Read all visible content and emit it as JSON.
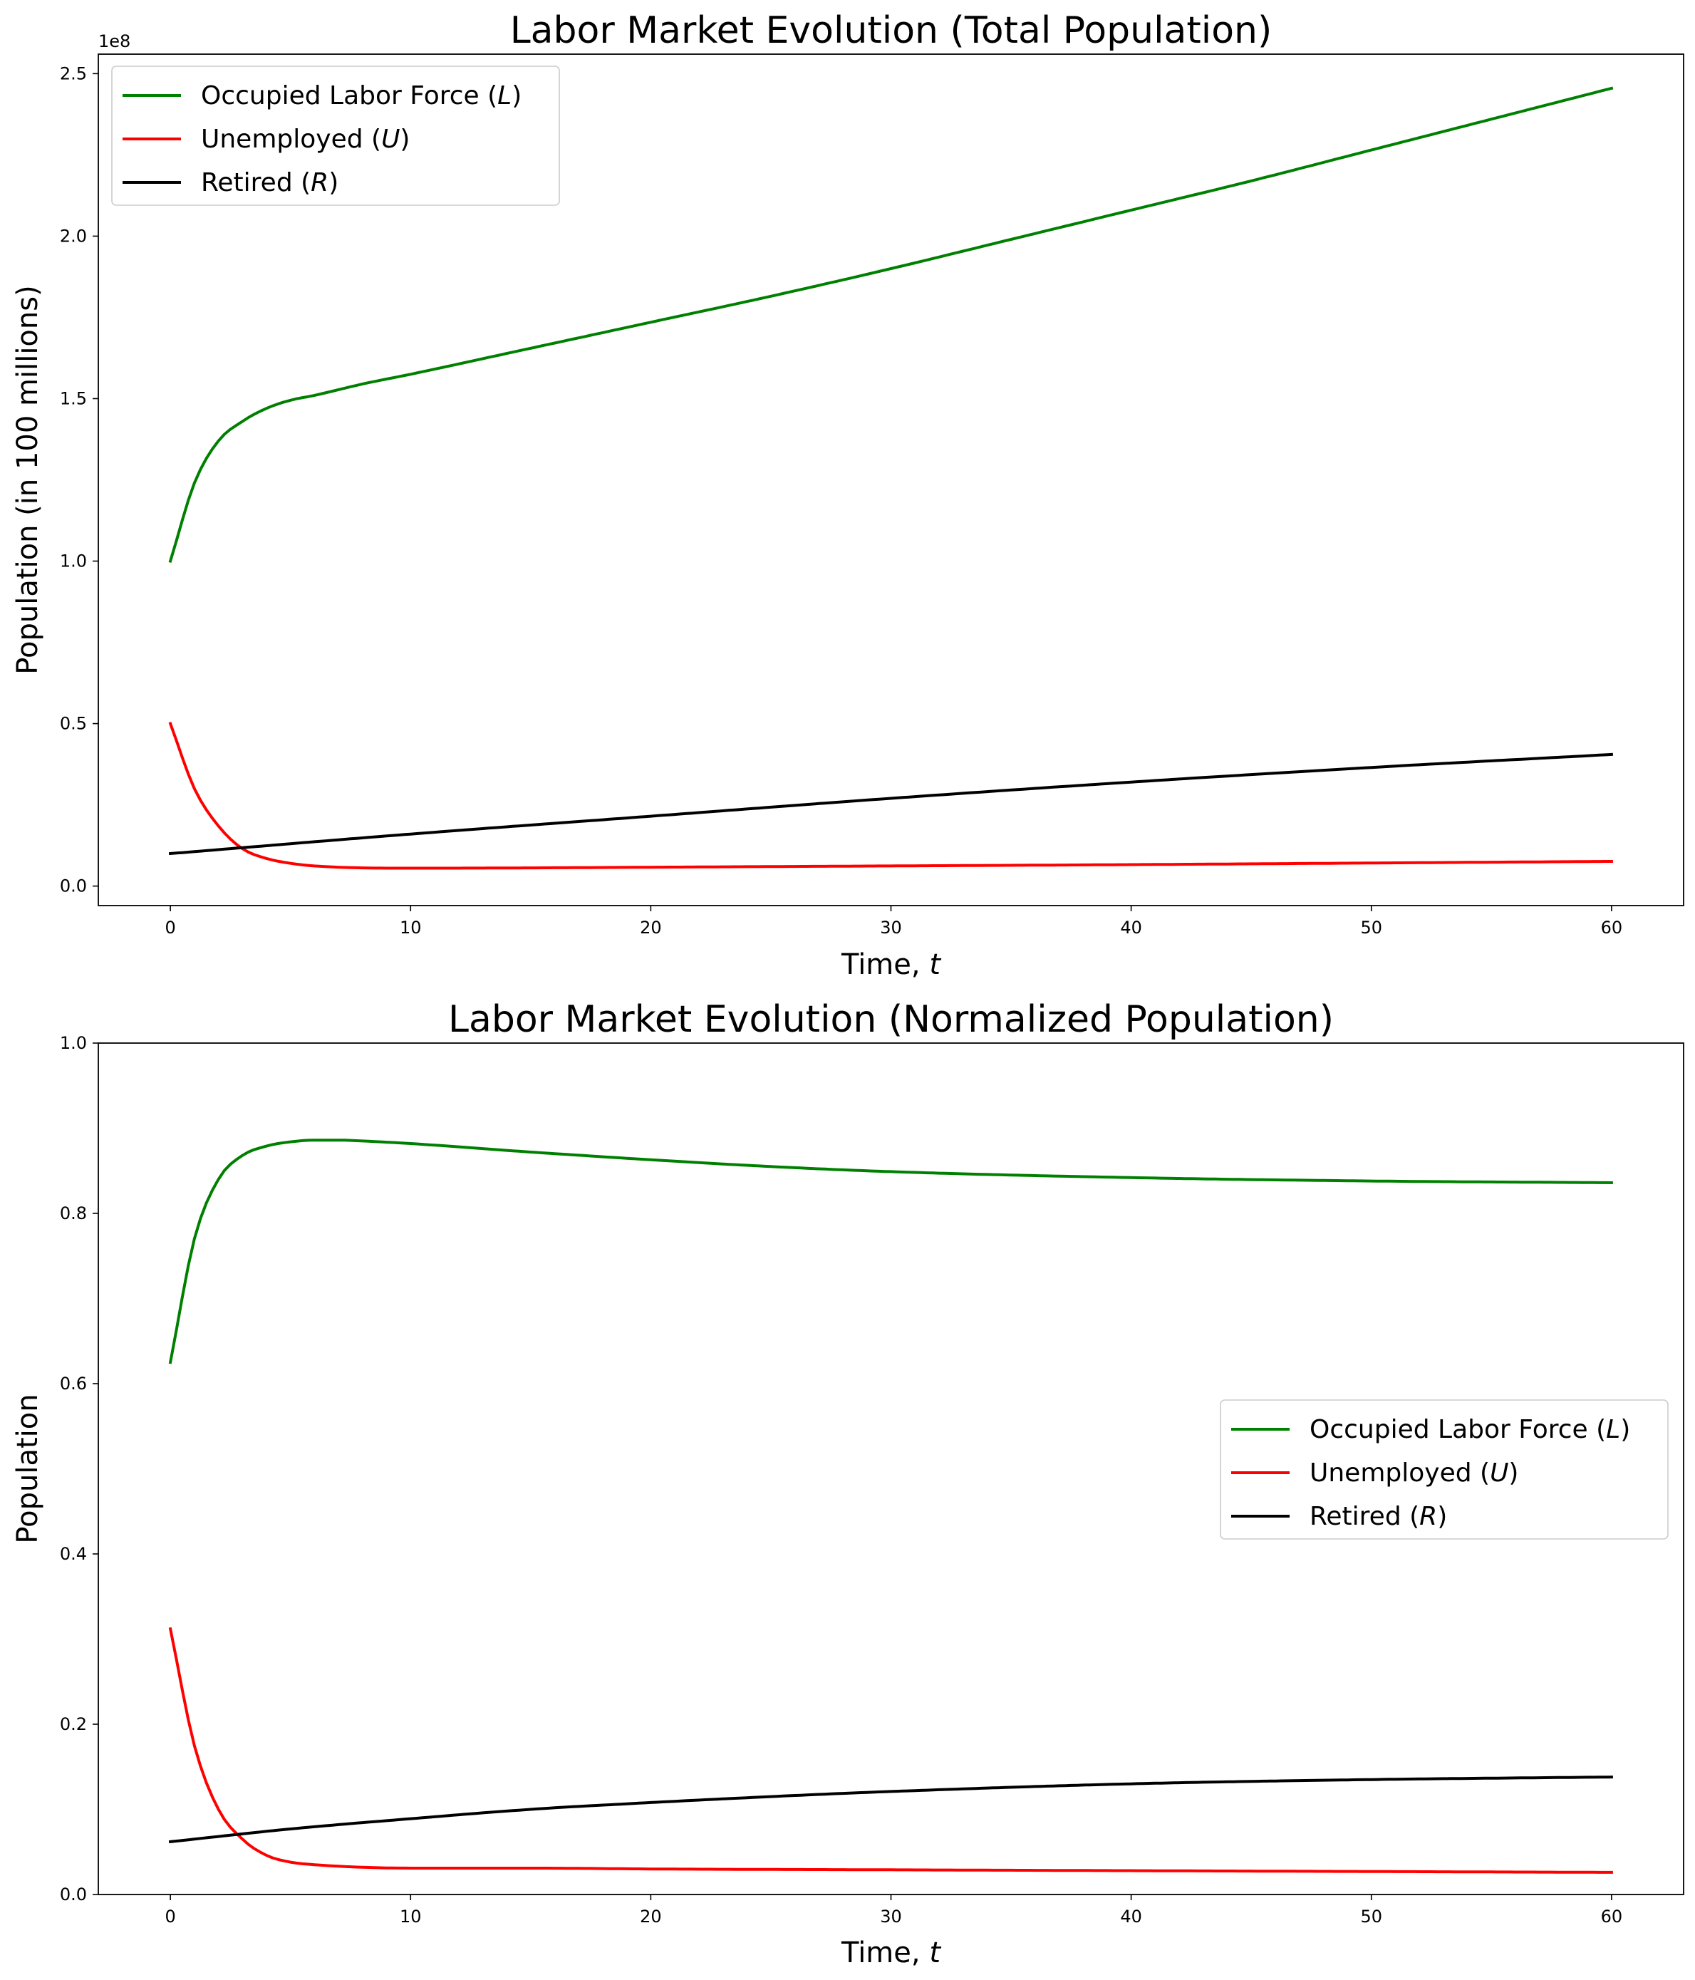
{
  "chart_data": [
    {
      "type": "line",
      "title": "Labor Market Evolution (Total Population)",
      "xlabel": "Time, ",
      "xlabel_var": "t",
      "ylabel": "Population (in 100 millions)",
      "offset_label": "1e8",
      "xlim": [
        -3,
        63
      ],
      "ylim": [
        -6,
        256
      ],
      "y_scale": 100000000,
      "xticks": [
        0,
        10,
        20,
        30,
        40,
        50,
        60
      ],
      "xtick_labels": [
        "0",
        "10",
        "20",
        "30",
        "40",
        "50",
        "60"
      ],
      "yticks": [
        0,
        50,
        100,
        150,
        200,
        250
      ],
      "ytick_labels": [
        "0.0",
        "0.5",
        "1.0",
        "1.5",
        "2.0",
        "2.5"
      ],
      "legend_position": "upper left",
      "series": [
        {
          "name": "Occupied Labor Force (",
          "var": "L",
          "color": "#008000",
          "x": [
            0,
            1,
            2,
            3,
            4,
            5,
            6,
            8,
            10,
            15,
            20,
            25,
            30,
            35,
            40,
            45,
            50,
            55,
            60
          ],
          "values": [
            100,
            124,
            137,
            143,
            147,
            149.5,
            151,
            154.5,
            157.5,
            165.5,
            173.5,
            181.5,
            190,
            199,
            208,
            217,
            226.5,
            236,
            245.5
          ]
        },
        {
          "name": "Unemployed (",
          "var": "U",
          "color": "#ff0000",
          "x": [
            0,
            1,
            2,
            3,
            4,
            5,
            6,
            8,
            10,
            15,
            20,
            30,
            40,
            50,
            60
          ],
          "values": [
            50,
            30,
            18.5,
            11.5,
            8.5,
            7,
            6.2,
            5.6,
            5.5,
            5.6,
            5.8,
            6.2,
            6.6,
            7.1,
            7.6
          ]
        },
        {
          "name": "Retired (",
          "var": "R",
          "color": "#000000",
          "x": [
            0,
            10,
            20,
            30,
            40,
            50,
            60
          ],
          "values": [
            10,
            16,
            21.5,
            27,
            32,
            36.5,
            40.5
          ]
        }
      ]
    },
    {
      "type": "line",
      "title": "Labor Market Evolution (Normalized Population)",
      "xlabel": "Time, ",
      "xlabel_var": "t",
      "ylabel": "Population",
      "xlim": [
        -3,
        63
      ],
      "ylim": [
        0,
        1
      ],
      "xticks": [
        0,
        10,
        20,
        30,
        40,
        50,
        60
      ],
      "xtick_labels": [
        "0",
        "10",
        "20",
        "30",
        "40",
        "50",
        "60"
      ],
      "yticks": [
        0,
        0.2,
        0.4,
        0.6,
        0.8,
        1.0
      ],
      "ytick_labels": [
        "0.0",
        "0.2",
        "0.4",
        "0.6",
        "0.8",
        "1.0"
      ],
      "legend_position": "center right",
      "series": [
        {
          "name": "Occupied Labor Force (",
          "var": "L",
          "color": "#008000",
          "x": [
            0,
            1,
            2,
            3,
            4,
            5,
            6,
            7,
            8,
            10,
            15,
            20,
            25,
            30,
            40,
            50,
            60
          ],
          "values": [
            0.625,
            0.77,
            0.84,
            0.868,
            0.879,
            0.884,
            0.886,
            0.886,
            0.885,
            0.882,
            0.872,
            0.863,
            0.855,
            0.849,
            0.842,
            0.838,
            0.836
          ]
        },
        {
          "name": "Unemployed (",
          "var": "U",
          "color": "#ff0000",
          "x": [
            0,
            1,
            2,
            3,
            4,
            5,
            6,
            8,
            10,
            15,
            20,
            30,
            40,
            50,
            60
          ],
          "values": [
            0.312,
            0.175,
            0.1,
            0.065,
            0.046,
            0.038,
            0.035,
            0.032,
            0.031,
            0.031,
            0.03,
            0.029,
            0.028,
            0.027,
            0.026
          ]
        },
        {
          "name": "Retired (",
          "var": "R",
          "color": "#000000",
          "x": [
            0,
            5,
            10,
            15,
            20,
            25,
            30,
            40,
            50,
            60
          ],
          "values": [
            0.062,
            0.077,
            0.089,
            0.1,
            0.108,
            0.115,
            0.121,
            0.13,
            0.135,
            0.138
          ]
        }
      ]
    }
  ]
}
